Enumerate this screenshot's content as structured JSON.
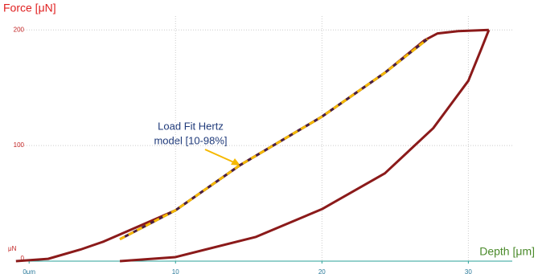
{
  "chart_data": {
    "type": "line",
    "y_label": "Force [μN]",
    "x_label": "Depth [μm]",
    "y_unit": "μN",
    "annotation": [
      "Load Fit Hertz",
      "model [10-98%]"
    ],
    "xlim": [
      -1,
      33
    ],
    "ylim": [
      0,
      212
    ],
    "xticks": [
      {
        "value": 0,
        "label": "0μm"
      },
      10,
      20,
      30
    ],
    "yticks": [
      0,
      100,
      200
    ],
    "grid": true,
    "series": [
      {
        "color": "#8b1a1a",
        "style": "solid",
        "x": [
          -0.9,
          1.3,
          3.5,
          5.1,
          10,
          14.4,
          20,
          24.3,
          27,
          27.9,
          29.3,
          31.4
        ],
        "values": [
          0,
          2,
          10,
          17,
          44,
          83,
          125,
          163,
          191,
          197,
          199,
          200
        ]
      },
      {
        "color": "#8b1a1a",
        "style": "solid",
        "x": [
          31.4,
          30.9,
          30,
          27.6,
          24.3,
          20,
          15.5,
          10,
          6.2
        ],
        "values": [
          200,
          184,
          156,
          115,
          76,
          45,
          21,
          3.5,
          0
        ]
      },
      {
        "color": "#f5b800",
        "style": "dashed",
        "x": [
          6.2,
          10,
          14.4,
          20,
          24.3,
          27.2
        ],
        "values": [
          19,
          44,
          83,
          125,
          163,
          192
        ]
      }
    ]
  }
}
